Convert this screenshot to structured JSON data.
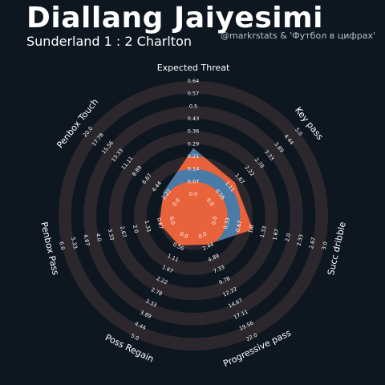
{
  "header": {
    "title": "Diallang Jaiyesimi",
    "subtitle": "Sunderland 1 : 2 Charlton",
    "credit": "@markrstats & 'Футбол в цифрах'"
  },
  "colors": {
    "background": "#0e1720",
    "ring_dark": "#0e1720",
    "ring_band": "#2c272d",
    "inner_ring": "#4a7aa6",
    "player_polygon": "#e8623b"
  },
  "chart_data": {
    "type": "radar",
    "title": "",
    "params": [
      "Expected Threat",
      "Key pass",
      "Succ dribble",
      "Progressive pass",
      "Poss Regain",
      "Penbox Pass",
      "Penbox Touch"
    ],
    "ranges": [
      [
        0.0,
        0.64
      ],
      [
        0.0,
        5.0
      ],
      [
        0.0,
        3.0
      ],
      [
        0.0,
        22.0
      ],
      [
        0.0,
        5.0
      ],
      [
        0.0,
        6.0
      ],
      [
        0.0,
        20.0
      ]
    ],
    "tick_labels": [
      [
        "0.0",
        "0.07",
        "0.14",
        "0.21",
        "0.29",
        "0.36",
        "0.43",
        "0.5",
        "0.57",
        "0.64"
      ],
      [
        "0.0",
        "0.56",
        "1.11",
        "1.67",
        "2.22",
        "2.78",
        "3.33",
        "3.89",
        "4.44",
        "5.0"
      ],
      [
        "0.0",
        "0.33",
        "0.67",
        "1.0",
        "1.33",
        "1.67",
        "2.0",
        "2.33",
        "2.67",
        "3.0"
      ],
      [
        "0.0",
        "2.44",
        "4.89",
        "7.33",
        "9.78",
        "12.22",
        "14.67",
        "17.11",
        "19.56",
        "22.0"
      ],
      [
        "0.0",
        "0.56",
        "1.11",
        "1.67",
        "2.22",
        "2.78",
        "3.33",
        "3.89",
        "4.44",
        "5.0"
      ],
      [
        "0.0",
        "0.67",
        "1.33",
        "2.0",
        "2.67",
        "3.33",
        "4.0",
        "4.67",
        "5.33",
        "6.0"
      ],
      [
        "0.0",
        "2.22",
        "4.44",
        "6.67",
        "8.89",
        "11.11",
        "13.33",
        "15.56",
        "17.78",
        "20.0"
      ]
    ],
    "series": [
      {
        "values": [
          0.26,
          1.4,
          1.05,
          2.0,
          0.5,
          0.7,
          2.9
        ]
      }
    ],
    "grid": true
  }
}
